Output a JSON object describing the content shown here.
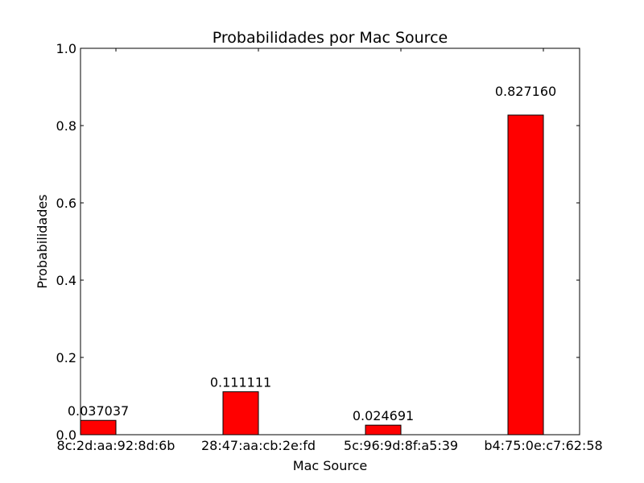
{
  "chart_data": {
    "type": "bar",
    "title": "Probabilidades por Mac Source",
    "xlabel": "Mac Source",
    "ylabel": "Probabilidades",
    "categories": [
      "8c:2d:aa:92:8d:6b",
      "28:47:aa:cb:2e:fd",
      "5c:96:9d:8f:a5:39",
      "b4:75:0e:c7:62:58"
    ],
    "values": [
      0.037037,
      0.111111,
      0.024691,
      0.82716
    ],
    "value_labels": [
      "0.037037",
      "0.111111",
      "0.024691",
      "0.827160"
    ],
    "ylim": [
      0,
      1.0
    ],
    "yticks": [
      0.0,
      0.2,
      0.4,
      0.6,
      0.8,
      1.0
    ],
    "ytick_labels": [
      "0.0",
      "0.2",
      "0.4",
      "0.6",
      "0.8",
      "1.0"
    ],
    "grid": false,
    "bar_color": "#ff0000"
  }
}
